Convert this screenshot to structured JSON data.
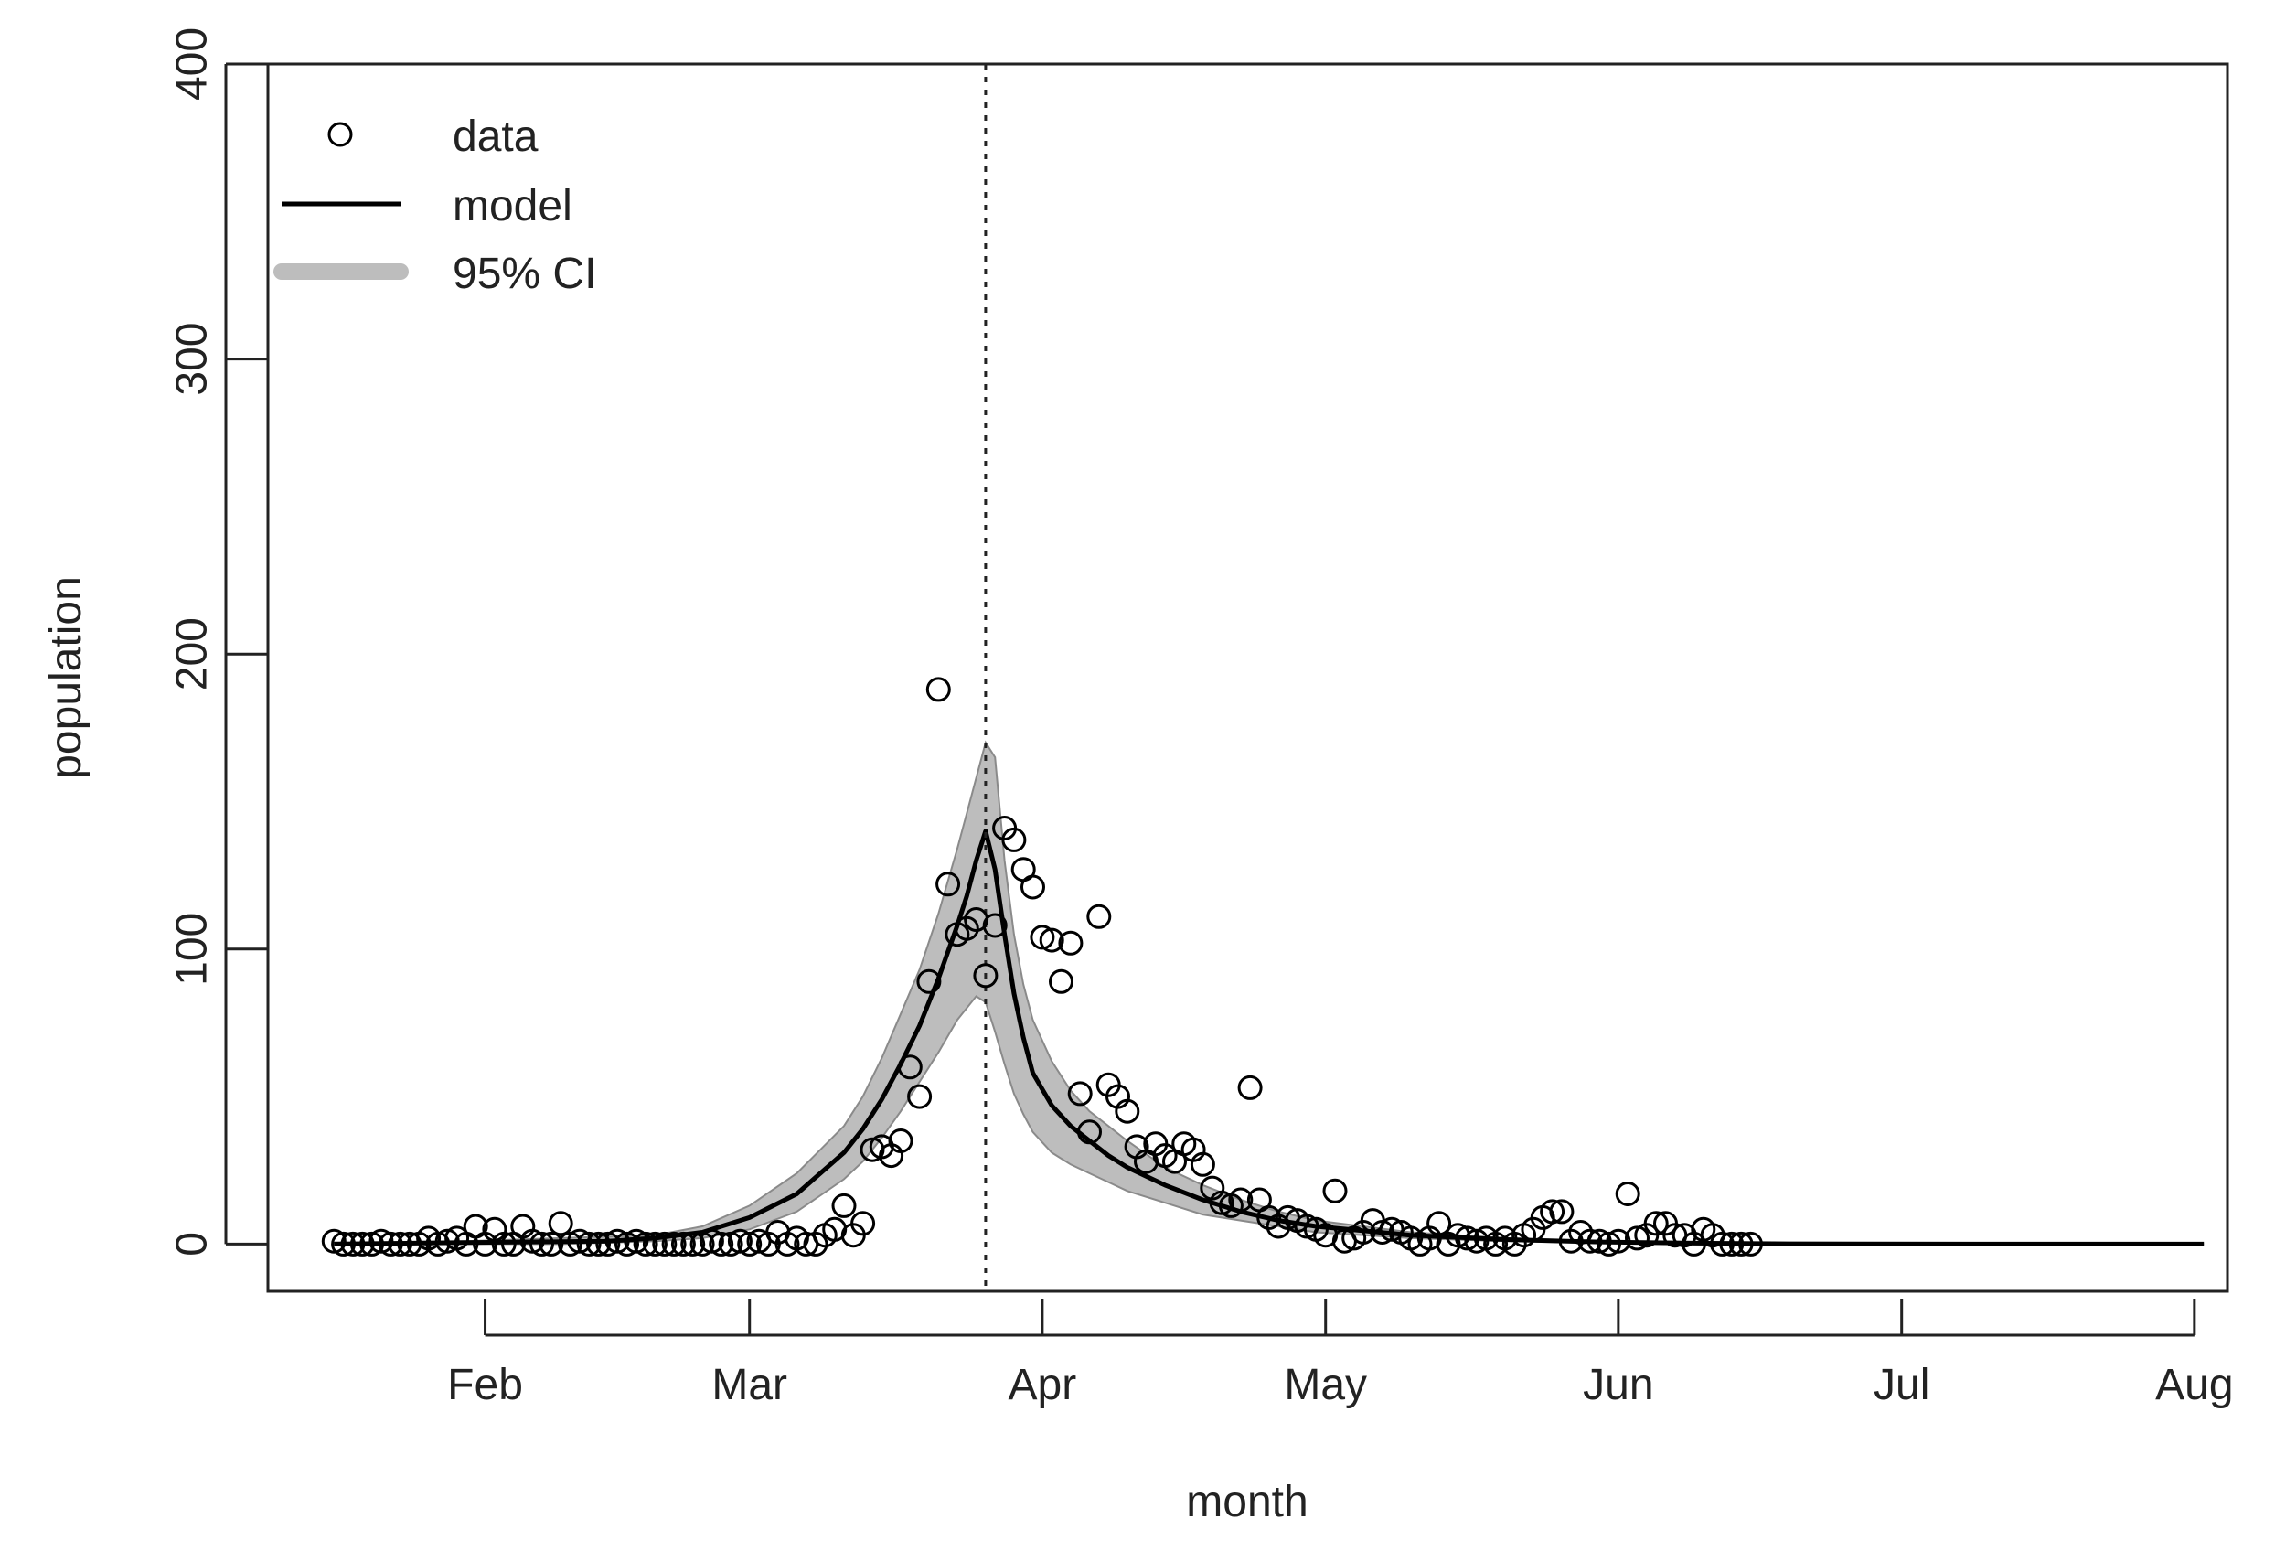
{
  "chart_data": {
    "type": "scatter",
    "xlabel": "month",
    "ylabel": "population",
    "xlim": [
      9,
      216.5
    ],
    "ylim": [
      -16,
      400
    ],
    "grid": false,
    "x_unit": "day of year",
    "x_ticks": [
      {
        "label": "Feb",
        "day": 32
      },
      {
        "label": "Mar",
        "day": 60
      },
      {
        "label": "Apr",
        "day": 91
      },
      {
        "label": "May",
        "day": 121
      },
      {
        "label": "Jun",
        "day": 152
      },
      {
        "label": "Jul",
        "day": 182
      },
      {
        "label": "Aug",
        "day": 213
      }
    ],
    "y_ticks": [
      0,
      100,
      200,
      300,
      400
    ],
    "peak_marker": {
      "day": 85,
      "style": "dotted vertical line"
    },
    "legend": {
      "position": "top-left",
      "entries": [
        {
          "label": "data",
          "kind": "point"
        },
        {
          "label": "model",
          "kind": "line",
          "color": "#000000"
        },
        {
          "label": "95% CI",
          "kind": "band",
          "color": "#bdbdbd"
        }
      ]
    },
    "colors": {
      "band_fill": "#bdbdbd",
      "band_stroke": "#8a8a8a",
      "model_line": "#000000",
      "points": "#000000"
    },
    "series": [
      {
        "name": "data",
        "kind": "points",
        "points": [
          [
            16,
            1
          ],
          [
            17,
            0
          ],
          [
            18,
            0
          ],
          [
            19,
            0
          ],
          [
            20,
            0
          ],
          [
            21,
            1
          ],
          [
            22,
            0
          ],
          [
            23,
            0
          ],
          [
            24,
            0
          ],
          [
            25,
            0
          ],
          [
            26,
            2
          ],
          [
            27,
            0
          ],
          [
            28,
            1
          ],
          [
            29,
            2
          ],
          [
            30,
            0
          ],
          [
            31,
            6
          ],
          [
            32,
            0
          ],
          [
            33,
            5
          ],
          [
            34,
            0
          ],
          [
            35,
            0
          ],
          [
            36,
            6
          ],
          [
            37,
            1
          ],
          [
            38,
            0
          ],
          [
            39,
            0
          ],
          [
            40,
            7
          ],
          [
            41,
            0
          ],
          [
            42,
            1
          ],
          [
            43,
            0
          ],
          [
            44,
            0
          ],
          [
            45,
            0
          ],
          [
            46,
            1
          ],
          [
            47,
            0
          ],
          [
            48,
            1
          ],
          [
            49,
            0
          ],
          [
            50,
            0
          ],
          [
            51,
            0
          ],
          [
            52,
            0
          ],
          [
            53,
            0
          ],
          [
            54,
            0
          ],
          [
            55,
            0
          ],
          [
            56,
            1
          ],
          [
            57,
            0
          ],
          [
            58,
            0
          ],
          [
            59,
            1
          ],
          [
            60,
            0
          ],
          [
            61,
            1
          ],
          [
            62,
            0
          ],
          [
            63,
            4
          ],
          [
            64,
            0
          ],
          [
            65,
            2
          ],
          [
            66,
            0
          ],
          [
            67,
            0
          ],
          [
            68,
            3
          ],
          [
            69,
            5
          ],
          [
            70,
            13
          ],
          [
            71,
            3
          ],
          [
            72,
            7
          ],
          [
            73,
            32
          ],
          [
            74,
            33
          ],
          [
            75,
            30
          ],
          [
            76,
            35
          ],
          [
            77,
            60
          ],
          [
            78,
            50
          ],
          [
            79,
            89
          ],
          [
            80,
            188
          ],
          [
            81,
            122
          ],
          [
            82,
            105
          ],
          [
            83,
            107
          ],
          [
            84,
            110
          ],
          [
            85,
            91
          ],
          [
            86,
            108
          ],
          [
            87,
            141
          ],
          [
            88,
            137
          ],
          [
            89,
            127
          ],
          [
            90,
            121
          ],
          [
            91,
            104
          ],
          [
            92,
            103
          ],
          [
            93,
            89
          ],
          [
            94,
            102
          ],
          [
            95,
            51
          ],
          [
            96,
            38
          ],
          [
            97,
            111
          ],
          [
            98,
            54
          ],
          [
            99,
            50
          ],
          [
            100,
            45
          ],
          [
            101,
            33
          ],
          [
            102,
            28
          ],
          [
            103,
            34
          ],
          [
            104,
            30
          ],
          [
            105,
            28
          ],
          [
            106,
            34
          ],
          [
            107,
            32
          ],
          [
            108,
            27
          ],
          [
            109,
            19
          ],
          [
            110,
            14
          ],
          [
            111,
            13
          ],
          [
            112,
            15
          ],
          [
            113,
            53
          ],
          [
            114,
            15
          ],
          [
            115,
            9
          ],
          [
            116,
            6
          ],
          [
            117,
            9
          ],
          [
            118,
            8
          ],
          [
            119,
            6
          ],
          [
            120,
            5
          ],
          [
            121,
            3
          ],
          [
            122,
            18
          ],
          [
            123,
            1
          ],
          [
            124,
            2
          ],
          [
            125,
            4
          ],
          [
            126,
            8
          ],
          [
            127,
            4
          ],
          [
            128,
            5
          ],
          [
            129,
            4
          ],
          [
            130,
            2
          ],
          [
            131,
            0
          ],
          [
            132,
            2
          ],
          [
            133,
            7
          ],
          [
            134,
            0
          ],
          [
            135,
            3
          ],
          [
            136,
            2
          ],
          [
            137,
            1
          ],
          [
            138,
            2
          ],
          [
            139,
            0
          ],
          [
            140,
            2
          ],
          [
            141,
            0
          ],
          [
            142,
            3
          ],
          [
            143,
            5
          ],
          [
            144,
            9
          ],
          [
            145,
            11
          ],
          [
            146,
            11
          ],
          [
            147,
            1
          ],
          [
            148,
            4
          ],
          [
            149,
            1
          ],
          [
            150,
            1
          ],
          [
            151,
            0
          ],
          [
            152,
            1
          ],
          [
            153,
            17
          ],
          [
            154,
            2
          ],
          [
            155,
            3
          ],
          [
            156,
            7
          ],
          [
            157,
            7
          ],
          [
            158,
            3
          ],
          [
            159,
            3
          ],
          [
            160,
            0
          ],
          [
            161,
            5
          ],
          [
            162,
            3
          ],
          [
            163,
            0
          ],
          [
            164,
            0
          ],
          [
            165,
            0
          ],
          [
            166,
            0
          ]
        ]
      },
      {
        "name": "model",
        "kind": "line",
        "points": [
          [
            16,
            0
          ],
          [
            30,
            0.5
          ],
          [
            45,
            1
          ],
          [
            50,
            2
          ],
          [
            55,
            4
          ],
          [
            60,
            9
          ],
          [
            65,
            17
          ],
          [
            70,
            31
          ],
          [
            72,
            39
          ],
          [
            74,
            49
          ],
          [
            76,
            61
          ],
          [
            78,
            74
          ],
          [
            80,
            90
          ],
          [
            82,
            108
          ],
          [
            83,
            118
          ],
          [
            84,
            130
          ],
          [
            85,
            140
          ],
          [
            86,
            127
          ],
          [
            87,
            105
          ],
          [
            88,
            85
          ],
          [
            89,
            70
          ],
          [
            90,
            58
          ],
          [
            92,
            47
          ],
          [
            94,
            40
          ],
          [
            96,
            35
          ],
          [
            98,
            30
          ],
          [
            100,
            26
          ],
          [
            104,
            20
          ],
          [
            108,
            15
          ],
          [
            112,
            11
          ],
          [
            116,
            8
          ],
          [
            120,
            6
          ],
          [
            130,
            3
          ],
          [
            140,
            1.5
          ],
          [
            150,
            0.7
          ],
          [
            160,
            0.3
          ],
          [
            170,
            0.1
          ],
          [
            190,
            0
          ],
          [
            214,
            0
          ]
        ]
      },
      {
        "name": "95% CI upper",
        "kind": "band_upper",
        "points": [
          [
            16,
            0.5
          ],
          [
            30,
            1
          ],
          [
            40,
            2
          ],
          [
            50,
            3
          ],
          [
            55,
            6
          ],
          [
            60,
            13
          ],
          [
            65,
            24
          ],
          [
            70,
            40
          ],
          [
            72,
            50
          ],
          [
            74,
            63
          ],
          [
            76,
            78
          ],
          [
            78,
            93
          ],
          [
            80,
            112
          ],
          [
            82,
            134
          ],
          [
            83,
            146
          ],
          [
            84,
            158
          ],
          [
            85,
            170
          ],
          [
            86,
            165
          ],
          [
            87,
            130
          ],
          [
            88,
            105
          ],
          [
            89,
            88
          ],
          [
            90,
            76
          ],
          [
            92,
            62
          ],
          [
            94,
            52
          ],
          [
            96,
            45
          ],
          [
            98,
            40
          ],
          [
            100,
            35
          ],
          [
            104,
            26
          ],
          [
            108,
            20
          ],
          [
            112,
            15
          ],
          [
            116,
            11
          ],
          [
            120,
            8
          ],
          [
            130,
            4
          ],
          [
            140,
            2
          ],
          [
            150,
            1
          ],
          [
            160,
            0.5
          ],
          [
            170,
            0.2
          ],
          [
            190,
            0
          ],
          [
            214,
            0
          ]
        ]
      },
      {
        "name": "95% CI lower",
        "kind": "band_lower",
        "points": [
          [
            16,
            0
          ],
          [
            30,
            0
          ],
          [
            40,
            0
          ],
          [
            50,
            1
          ],
          [
            55,
            2
          ],
          [
            60,
            5
          ],
          [
            65,
            11
          ],
          [
            70,
            22
          ],
          [
            72,
            28
          ],
          [
            74,
            36
          ],
          [
            76,
            45
          ],
          [
            78,
            55
          ],
          [
            80,
            65
          ],
          [
            82,
            76
          ],
          [
            83,
            80
          ],
          [
            84,
            84
          ],
          [
            85,
            82
          ],
          [
            86,
            72
          ],
          [
            87,
            61
          ],
          [
            88,
            51
          ],
          [
            89,
            44
          ],
          [
            90,
            38
          ],
          [
            92,
            31
          ],
          [
            94,
            27
          ],
          [
            96,
            24
          ],
          [
            98,
            21
          ],
          [
            100,
            18
          ],
          [
            104,
            14
          ],
          [
            108,
            10
          ],
          [
            112,
            8
          ],
          [
            116,
            6
          ],
          [
            120,
            4
          ],
          [
            130,
            2
          ],
          [
            140,
            1
          ],
          [
            150,
            0.4
          ],
          [
            160,
            0.2
          ],
          [
            170,
            0
          ],
          [
            190,
            0
          ],
          [
            214,
            0
          ]
        ]
      }
    ]
  }
}
